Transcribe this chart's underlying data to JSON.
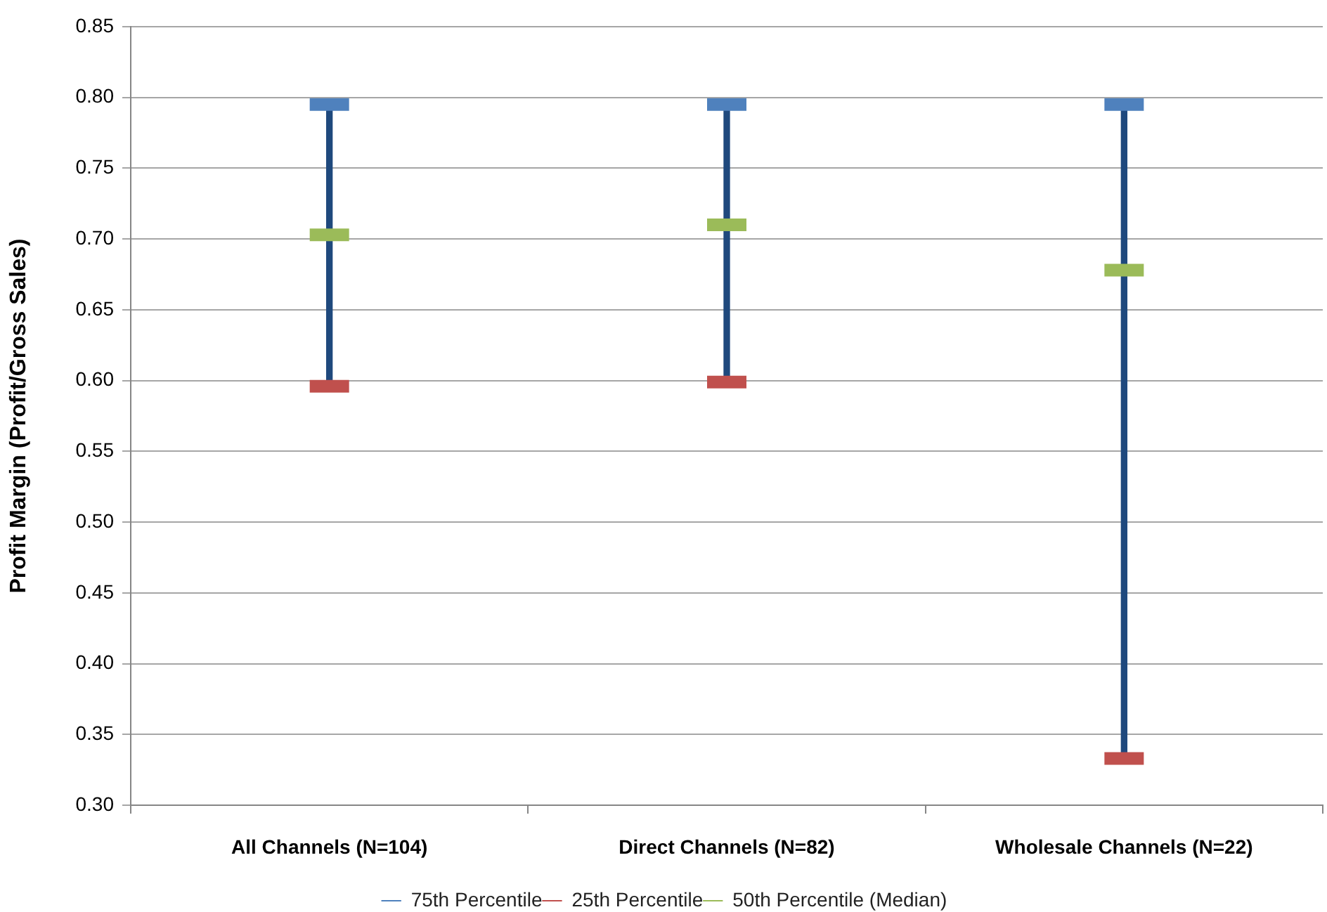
{
  "chart_data": {
    "type": "scatter",
    "ylabel": "Profit Margin (Profit/Gross Sales)",
    "categories": [
      "All Channels (N=104)",
      "Direct Channels (N=82)",
      "Wholesale Channels (N=22)"
    ],
    "series": [
      {
        "type": "bar",
        "color": "#1f497d",
        "base": [
          0.596,
          0.599,
          0.333
        ],
        "values": [
          0.199,
          0.196,
          0.462
        ]
      },
      {
        "name": "75th Percentile",
        "color": "#4f81bd",
        "values": [
          0.795,
          0.795,
          0.795
        ]
      },
      {
        "name": "25th Percentile",
        "color": "#c0504d",
        "values": [
          0.596,
          0.599,
          0.333
        ]
      },
      {
        "name": "50th Percentile (Median)",
        "color": "#9bbb59",
        "values": [
          0.703,
          0.71,
          0.678
        ]
      }
    ],
    "ylim": [
      0.3,
      0.85
    ],
    "yticks": [
      {
        "value": 0.3,
        "label": "0.30"
      },
      0.35,
      {
        "value": 0.4,
        "label": "0.40"
      },
      0.45,
      {
        "value": 0.5,
        "label": "0.50"
      },
      0.55,
      {
        "value": 0.6,
        "label": "0.60"
      },
      0.65,
      {
        "value": 0.7,
        "label": "0.70"
      },
      0.75,
      {
        "value": 0.8,
        "label": "0.80"
      },
      0.85
    ],
    "grid": "y",
    "legend": "bottom"
  }
}
